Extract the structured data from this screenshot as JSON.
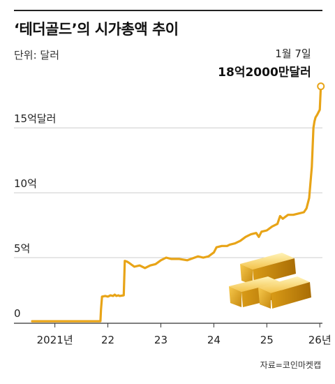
{
  "chart_data": {
    "type": "line",
    "title": "‘테더골드’의 시가총액 추이",
    "unit_label": "단위: 달러",
    "source": "자료=코인마켓캡",
    "y_ticks": [
      {
        "value": 0,
        "label": "0"
      },
      {
        "value": 500000000,
        "label": "5억"
      },
      {
        "value": 1000000000,
        "label": "10억"
      },
      {
        "value": 1500000000,
        "label": "15억달러"
      }
    ],
    "x_ticks": [
      {
        "value": 2021.0,
        "label": "2021년"
      },
      {
        "value": 2022.0,
        "label": "22"
      },
      {
        "value": 2023.0,
        "label": "23"
      },
      {
        "value": 2024.0,
        "label": "24"
      },
      {
        "value": 2025.0,
        "label": "25"
      },
      {
        "value": 2026.0,
        "label": "26년"
      }
    ],
    "xlim": [
      2020.57,
      2026.05
    ],
    "ylim": [
      0,
      1920000000
    ],
    "grid": "horizontal",
    "annotation": {
      "date_label": "1월 7일",
      "value_label": "18억2000만달러",
      "x": 2026.02,
      "y": 1820000000
    },
    "series": [
      {
        "color": "#e8a417",
        "x": [
          2020.57,
          2021.5,
          2021.86,
          2021.87,
          2021.89,
          2021.95,
          2022.0,
          2022.05,
          2022.1,
          2022.13,
          2022.16,
          2022.2,
          2022.22,
          2022.3,
          2022.32,
          2022.36,
          2022.4,
          2022.5,
          2022.6,
          2022.7,
          2022.8,
          2022.9,
          2023.0,
          2023.1,
          2023.2,
          2023.35,
          2023.5,
          2023.7,
          2023.8,
          2023.9,
          2024.0,
          2024.05,
          2024.15,
          2024.25,
          2024.3,
          2024.4,
          2024.5,
          2024.6,
          2024.7,
          2024.8,
          2024.85,
          2024.9,
          2025.0,
          2025.1,
          2025.2,
          2025.25,
          2025.3,
          2025.4,
          2025.5,
          2025.6,
          2025.7,
          2025.75,
          2025.8,
          2025.85,
          2025.88,
          2025.9,
          2025.92,
          2025.95,
          2026.0,
          2026.02
        ],
        "values": [
          10000000,
          10000000,
          10000000,
          100000000,
          200000000,
          205000000,
          200000000,
          210000000,
          205000000,
          215000000,
          205000000,
          210000000,
          205000000,
          210000000,
          475000000,
          470000000,
          460000000,
          430000000,
          440000000,
          420000000,
          440000000,
          450000000,
          480000000,
          500000000,
          490000000,
          490000000,
          480000000,
          510000000,
          500000000,
          510000000,
          540000000,
          580000000,
          590000000,
          590000000,
          600000000,
          610000000,
          630000000,
          660000000,
          680000000,
          690000000,
          660000000,
          700000000,
          710000000,
          740000000,
          760000000,
          820000000,
          800000000,
          830000000,
          830000000,
          840000000,
          850000000,
          880000000,
          960000000,
          1200000000,
          1500000000,
          1550000000,
          1580000000,
          1600000000,
          1640000000,
          1820000000
        ]
      }
    ]
  },
  "colors": {
    "line": "#e8a417",
    "grid": "#cccccc",
    "text": "#222222"
  },
  "illustration": {
    "icon": "gold-bars-icon"
  }
}
